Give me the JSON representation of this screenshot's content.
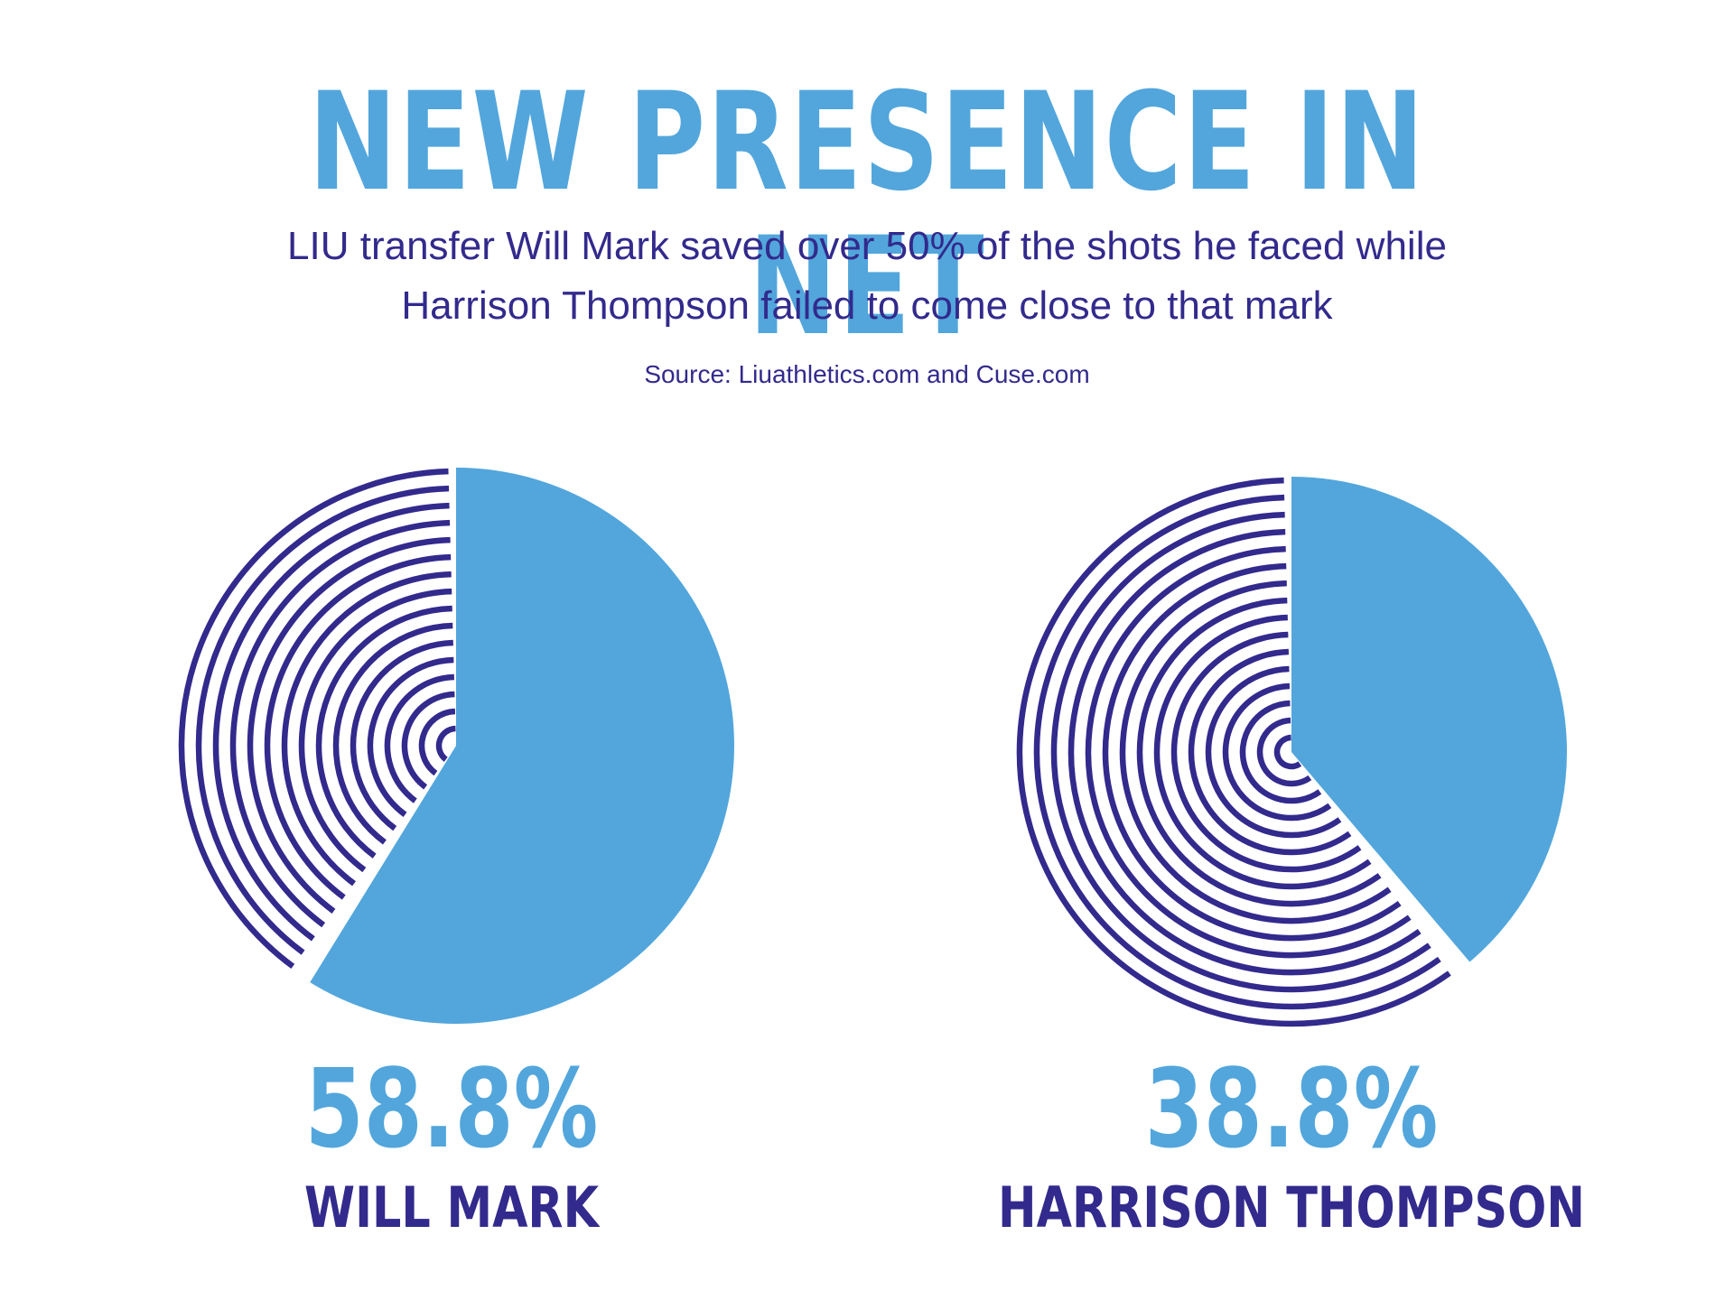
{
  "header": {
    "title": "NEW PRESENCE IN NET",
    "subtitle_line1": "LIU transfer Will Mark saved over 50% of the shots he faced while",
    "subtitle_line2": "Harrison Thompson failed to come close to that mark",
    "source": "Source:  Liuathletics.com and Cuse.com"
  },
  "colors": {
    "accent": "#52a6dc",
    "primary": "#322a8c",
    "background": "#ffffff"
  },
  "chart_data": [
    {
      "type": "pie",
      "title": "",
      "label": "58.8%",
      "name": "WILL MARK",
      "value": 58.8,
      "remainder": 41.2
    },
    {
      "type": "pie",
      "title": "",
      "label": "38.8%",
      "name": "HARRISON THOMPSON",
      "value": 38.8,
      "remainder": 61.2
    }
  ]
}
